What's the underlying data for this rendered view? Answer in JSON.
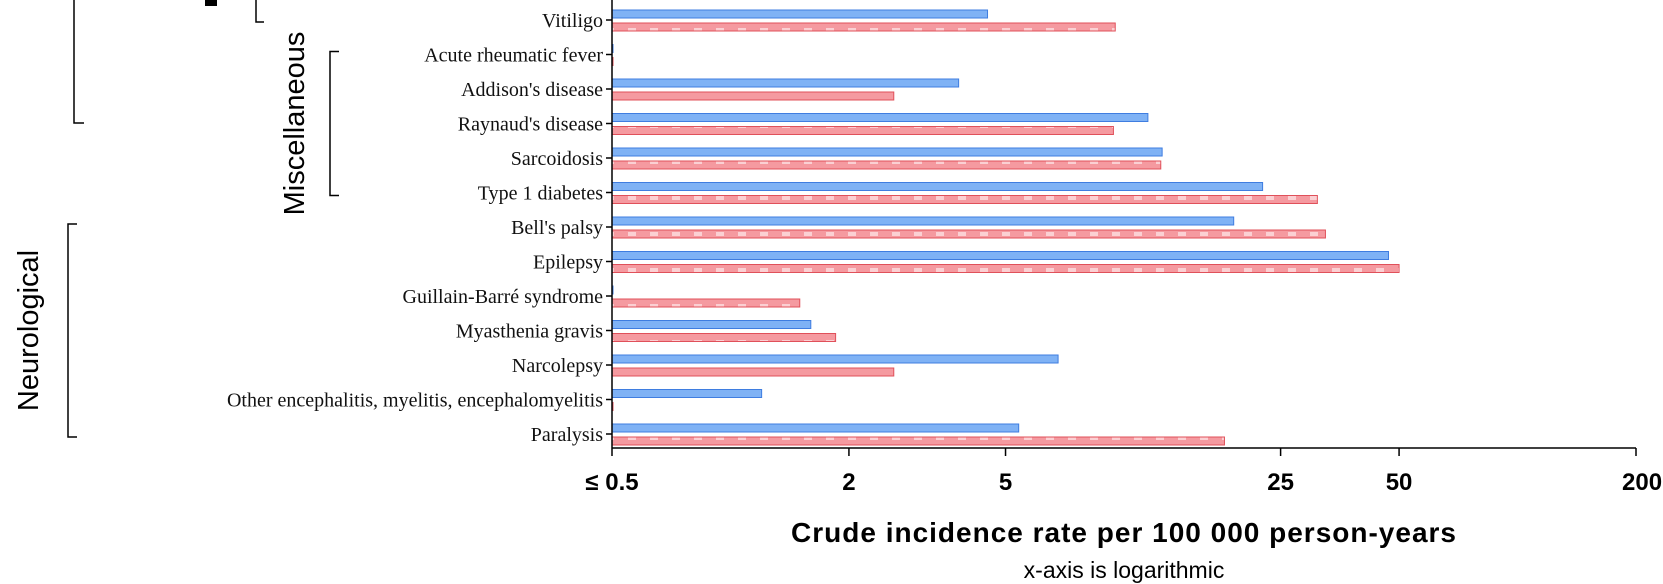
{
  "chart_data": {
    "type": "bar",
    "orientation": "horizontal",
    "x_scale": "log",
    "xlim": [
      0.5,
      200
    ],
    "x_ticks": [
      {
        "value": 0.5,
        "label": "≤ 0.5"
      },
      {
        "value": 2,
        "label": "2"
      },
      {
        "value": 5,
        "label": "5"
      },
      {
        "value": 25,
        "label": "25"
      },
      {
        "value": 50,
        "label": "50"
      },
      {
        "value": 200,
        "label": "200"
      }
    ],
    "xlabel": "Crude incidence rate per 100 000 person-years",
    "xlabel_note": "x-axis is logarithmic",
    "categories": [
      "Vitiligo",
      "Acute rheumatic fever",
      "Addison's disease",
      "Raynaud's disease",
      "Sarcoidosis",
      "Type 1 diabetes",
      "Bell's palsy",
      "Epilepsy",
      "Guillain-Barré syndrome",
      "Myasthenia gravis",
      "Narcolepsy",
      "Other encephalitis, myelitis, encephalomyelitis",
      "Paralysis"
    ],
    "groups": [
      {
        "label": "Miscellaneous",
        "from": "Acute rheumatic fever",
        "to": "Type 1 diabetes"
      },
      {
        "label": "Neurological",
        "from": "Bell's palsy",
        "to": "Paralysis"
      }
    ],
    "series": [
      {
        "color": "#7fb2f5",
        "stroke": "#3f7de0",
        "pattern": "solid",
        "values": [
          4.5,
          0.5,
          3.8,
          11.5,
          12.5,
          22.5,
          19,
          47,
          0.5,
          1.6,
          6.8,
          1.2,
          5.4
        ]
      },
      {
        "color": "#f59aa0",
        "stroke": "#e0505a",
        "pattern": "dashed",
        "values": [
          9.5,
          0.5,
          2.6,
          9.4,
          12.4,
          31,
          32.5,
          50,
          1.5,
          1.85,
          2.6,
          0.5,
          18
        ]
      }
    ],
    "grid": false,
    "colors": {
      "blue_fill": "#7fb2f5",
      "blue_stroke": "#3f7de0",
      "red_fill": "#f59aa0",
      "red_stroke": "#e0505a"
    }
  }
}
